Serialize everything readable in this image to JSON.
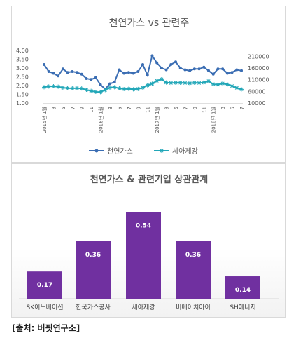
{
  "source": "[출처: 버핏연구소]",
  "chart_data": [
    {
      "type": "line",
      "title": "천연가스 vs 관련주",
      "x": [
        "2015년 1월",
        "2월",
        "3월",
        "4월",
        "5월",
        "6월",
        "7월",
        "8월",
        "9월",
        "10월",
        "11월",
        "12월",
        "2016년 1월",
        "2월",
        "3월",
        "4월",
        "5월",
        "6월",
        "7월",
        "8월",
        "9월",
        "10월",
        "11월",
        "12월",
        "2017년 1월",
        "2월",
        "3월",
        "4월",
        "5월",
        "6월",
        "7월",
        "8월",
        "9월",
        "10월",
        "11월",
        "12월",
        "2018년 1월",
        "2월",
        "3월",
        "4월",
        "5월",
        "6월",
        "7월"
      ],
      "x_tick_labels": [
        "2015년 1월",
        "3",
        "5",
        "7",
        "9",
        "11",
        "2016년 1월",
        "3",
        "5",
        "7",
        "9",
        "11",
        "2017년 1월",
        "3",
        "5",
        "7",
        "9",
        "11",
        "2018년 1월",
        "3",
        "5",
        "7"
      ],
      "series": [
        {
          "name": "천연가스",
          "axis": "left",
          "color": "#3a6db3",
          "marker": "circle",
          "values": [
            3.2,
            2.8,
            2.7,
            2.55,
            2.95,
            2.75,
            2.8,
            2.75,
            2.65,
            2.4,
            2.35,
            2.45,
            2.05,
            1.8,
            2.1,
            2.2,
            2.9,
            2.7,
            2.75,
            2.7,
            2.8,
            3.2,
            2.6,
            3.7,
            3.3,
            3.0,
            2.9,
            3.2,
            3.35,
            3.0,
            2.9,
            2.85,
            2.95,
            2.95,
            3.05,
            2.85,
            2.65,
            2.95,
            2.95,
            2.7,
            2.75,
            2.9,
            2.85
          ]
        },
        {
          "name": "세아제강",
          "axis": "right",
          "color": "#22a7b8",
          "marker": "asterisk",
          "values": [
            78000,
            81000,
            82000,
            80000,
            76000,
            74000,
            73000,
            73500,
            72500,
            67000,
            62000,
            58000,
            57000,
            66000,
            76000,
            78000,
            73000,
            70000,
            71000,
            69000,
            70500,
            76000,
            86000,
            93000,
            105000,
            112000,
            98000,
            96000,
            97000,
            97000,
            96000,
            95000,
            97000,
            96000,
            98000,
            104000,
            91000,
            89000,
            94000,
            90000,
            83000,
            75000,
            69000
          ]
        }
      ],
      "y_left": {
        "ticks": [
          "1.00",
          "1.50",
          "2.00",
          "2.50",
          "3.00",
          "3.50",
          "4.00"
        ],
        "range": [
          1.0,
          4.0
        ]
      },
      "y_right": {
        "ticks": [
          "10000",
          "60000",
          "110000",
          "160000",
          "210000"
        ],
        "range": [
          10000,
          235000
        ]
      },
      "legend": {
        "position": "bottom"
      }
    },
    {
      "type": "bar",
      "title": "천연가스 & 관련기업 상관관계",
      "categories": [
        "SK이노베이션",
        "한국가스공사",
        "세아제강",
        "비메이치아이",
        "SH에너지"
      ],
      "values": [
        0.17,
        0.36,
        0.54,
        0.36,
        0.14
      ],
      "value_labels": [
        "0.17",
        "0.36",
        "0.54",
        "0.36",
        "0.14"
      ],
      "ylim": [
        0,
        0.6
      ],
      "bar_color": "#7030a0"
    }
  ]
}
